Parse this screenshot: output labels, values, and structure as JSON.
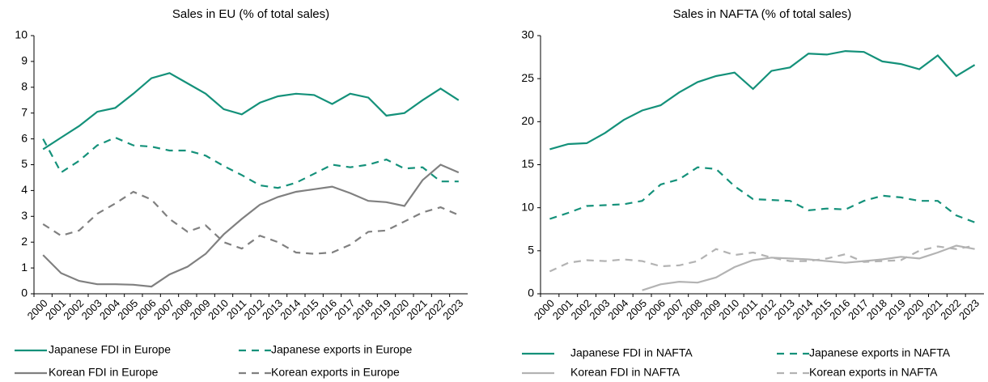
{
  "chart_data": [
    {
      "type": "line",
      "title": "Sales in EU (% of total sales)",
      "categories": [
        "2000",
        "2001",
        "2002",
        "2003",
        "2004",
        "2005",
        "2006",
        "2007",
        "2008",
        "2009",
        "2010",
        "2011",
        "2012",
        "2013",
        "2014",
        "2015",
        "2016",
        "2017",
        "2018",
        "2019",
        "2020",
        "2021",
        "2022",
        "2023"
      ],
      "ylim": [
        0,
        10
      ],
      "yticks": [
        0,
        1,
        2,
        3,
        4,
        5,
        6,
        7,
        8,
        9,
        10
      ],
      "grid": false,
      "series": [
        {
          "name": "Japanese FDI in Europe",
          "color": "#14917a",
          "dashed": false,
          "values": [
            5.6,
            6.05,
            6.5,
            7.05,
            7.2,
            7.75,
            8.35,
            8.55,
            8.15,
            7.75,
            7.15,
            6.95,
            7.4,
            7.65,
            7.75,
            7.7,
            7.35,
            7.75,
            7.6,
            6.9,
            7.0,
            7.5,
            7.95,
            7.5
          ]
        },
        {
          "name": "Japanese exports in Europe",
          "color": "#14917a",
          "dashed": true,
          "values": [
            6.0,
            4.7,
            5.15,
            5.75,
            6.05,
            5.75,
            5.7,
            5.55,
            5.55,
            5.35,
            4.95,
            4.6,
            4.2,
            4.1,
            4.3,
            4.65,
            5.0,
            4.9,
            5.0,
            5.2,
            4.85,
            4.9,
            4.35,
            4.35
          ]
        },
        {
          "name": "Korean FDI in Europe",
          "color": "#808080",
          "dashed": false,
          "values": [
            1.5,
            0.8,
            0.5,
            0.37,
            0.37,
            0.35,
            0.28,
            0.75,
            1.05,
            1.55,
            2.3,
            2.9,
            3.45,
            3.75,
            3.95,
            4.05,
            4.15,
            3.9,
            3.6,
            3.55,
            3.4,
            4.4,
            5.0,
            4.7
          ]
        },
        {
          "name": "Korean exports in Europe",
          "color": "#808080",
          "dashed": true,
          "values": [
            2.7,
            2.25,
            2.45,
            3.1,
            3.5,
            3.95,
            3.65,
            2.9,
            2.4,
            2.65,
            2.0,
            1.75,
            2.25,
            2.0,
            1.6,
            1.55,
            1.6,
            1.9,
            2.4,
            2.45,
            2.8,
            3.15,
            3.35,
            3.05
          ]
        }
      ]
    },
    {
      "type": "line",
      "title": "Sales in NAFTA (% of total sales)",
      "categories": [
        "2000",
        "2001",
        "2002",
        "2003",
        "2004",
        "2005",
        "2006",
        "2007",
        "2008",
        "2009",
        "2010",
        "2011",
        "2012",
        "2013",
        "2014",
        "2015",
        "2016",
        "2017",
        "2018",
        "2019",
        "2020",
        "2021",
        "2022",
        "2023"
      ],
      "ylim": [
        0,
        30
      ],
      "yticks": [
        0,
        5,
        10,
        15,
        20,
        25,
        30
      ],
      "grid": false,
      "series": [
        {
          "name": "Japanese FDI in NAFTA",
          "color": "#14917a",
          "dashed": false,
          "values": [
            16.8,
            17.4,
            17.5,
            18.7,
            20.2,
            21.3,
            21.9,
            23.4,
            24.6,
            25.3,
            25.7,
            23.8,
            25.9,
            26.3,
            27.9,
            27.8,
            28.2,
            28.1,
            27.0,
            26.7,
            26.1,
            27.7,
            25.3,
            26.6
          ]
        },
        {
          "name": "Japanese exports in NAFTA",
          "color": "#14917a",
          "dashed": true,
          "values": [
            8.7,
            9.4,
            10.2,
            10.3,
            10.4,
            10.8,
            12.7,
            13.3,
            14.7,
            14.5,
            12.5,
            11.0,
            10.9,
            10.8,
            9.7,
            9.9,
            9.8,
            10.8,
            11.4,
            11.2,
            10.8,
            10.8,
            9.1,
            8.3
          ]
        },
        {
          "name": "Korean FDI in NAFTA",
          "color": "#b3b3b3",
          "dashed": false,
          "values": [
            null,
            null,
            null,
            null,
            null,
            0.4,
            1.1,
            1.4,
            1.3,
            1.9,
            3.1,
            3.9,
            4.2,
            4.1,
            4.0,
            3.8,
            3.6,
            3.8,
            4.0,
            4.3,
            4.1,
            4.8,
            5.6,
            5.2
          ]
        },
        {
          "name": "Korean exports in NAFTA",
          "color": "#b3b3b3",
          "dashed": true,
          "values": [
            2.6,
            3.6,
            3.9,
            3.8,
            4.0,
            3.8,
            3.2,
            3.3,
            3.8,
            5.2,
            4.5,
            4.8,
            4.2,
            3.8,
            3.8,
            4.1,
            4.6,
            3.7,
            3.8,
            3.9,
            5.0,
            5.5,
            5.2,
            5.6
          ]
        }
      ]
    }
  ]
}
